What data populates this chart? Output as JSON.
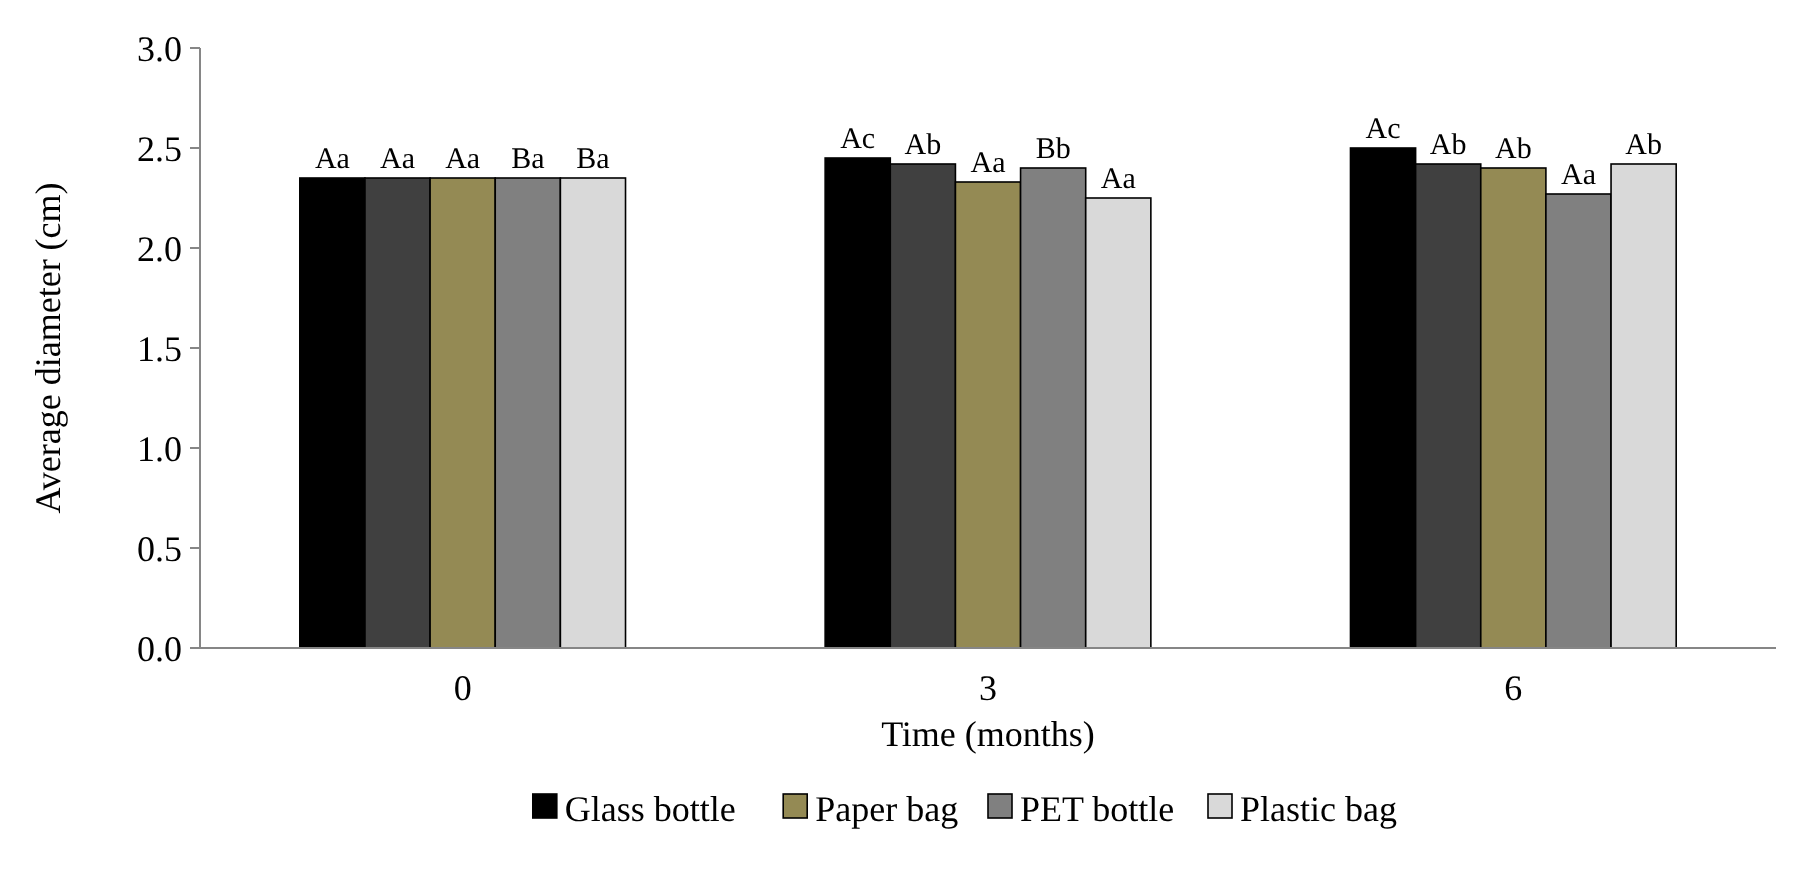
{
  "chart_data": {
    "type": "bar",
    "categories": [
      "0",
      "3",
      "6"
    ],
    "xlabel": "Time (months)",
    "ylabel": "Average diameter (cm)",
    "ylim": [
      0,
      3
    ],
    "yticks": [
      {
        "value": 0,
        "label": "0.0"
      },
      {
        "value": 0.5,
        "label": "0.5"
      },
      {
        "value": 1,
        "label": "1.0"
      },
      {
        "value": 1.5,
        "label": "1.5"
      },
      {
        "value": 2,
        "label": "2.0"
      },
      {
        "value": 2.5,
        "label": "2.5"
      },
      {
        "value": 3,
        "label": "3.0"
      }
    ],
    "grid": false,
    "legend": "bottom",
    "series": [
      {
        "name": "Glass bottle",
        "color": "#000000",
        "values": [
          2.35,
          2.45,
          2.5
        ],
        "value_labels": [
          "Aa",
          "Ac",
          "Ac"
        ]
      },
      {
        "color": "#404040",
        "values": [
          2.35,
          2.42,
          2.42
        ],
        "value_labels": [
          "Aa",
          "Ab",
          "Ab"
        ]
      },
      {
        "name": "Paper bag",
        "color": "#948a54",
        "values": [
          2.35,
          2.33,
          2.4
        ],
        "value_labels": [
          "Aa",
          "Aa",
          "Ab"
        ]
      },
      {
        "name": "PET bottle",
        "color": "#808080",
        "values": [
          2.35,
          2.4,
          2.27
        ],
        "value_labels": [
          "Ba",
          "Bb",
          "Aa"
        ]
      },
      {
        "name": "Plastic bag",
        "color": "#d9d9d9",
        "values": [
          2.35,
          2.25,
          2.42
        ],
        "value_labels": [
          "Ba",
          "Aa",
          "Ab"
        ]
      }
    ]
  }
}
